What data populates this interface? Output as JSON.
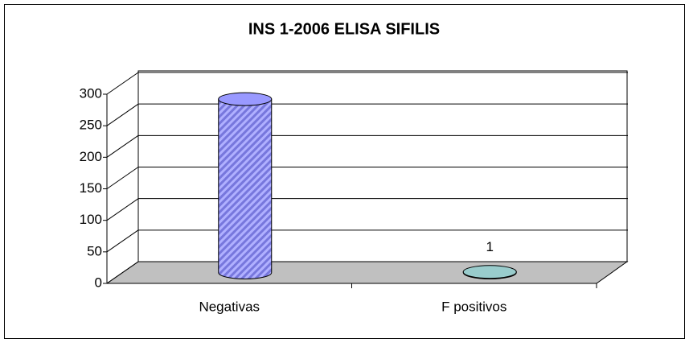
{
  "chart_data": {
    "type": "bar3d",
    "title": "INS 1-2006  ELISA  SIFILIS",
    "categories": [
      "Negativas",
      "F positivos"
    ],
    "values": [
      275,
      1
    ],
    "colors": [
      "#9999ff",
      "#99cccc"
    ],
    "value_labels_shown": [
      false,
      true
    ],
    "ylim": [
      0,
      300
    ],
    "yticks": [
      0,
      50,
      100,
      150,
      200,
      250,
      300
    ],
    "grid": true
  }
}
